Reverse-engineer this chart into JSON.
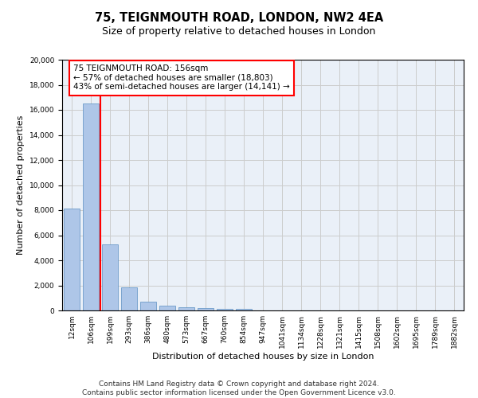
{
  "title_line1": "75, TEIGNMOUTH ROAD, LONDON, NW2 4EA",
  "title_line2": "Size of property relative to detached houses in London",
  "xlabel": "Distribution of detached houses by size in London",
  "ylabel": "Number of detached properties",
  "bar_labels": [
    "12sqm",
    "106sqm",
    "199sqm",
    "293sqm",
    "386sqm",
    "480sqm",
    "573sqm",
    "667sqm",
    "760sqm",
    "854sqm",
    "947sqm",
    "1041sqm",
    "1134sqm",
    "1228sqm",
    "1321sqm",
    "1415sqm",
    "1508sqm",
    "1602sqm",
    "1695sqm",
    "1789sqm",
    "1882sqm"
  ],
  "bar_values": [
    8100,
    16500,
    5300,
    1850,
    700,
    350,
    270,
    220,
    150,
    100,
    0,
    0,
    0,
    0,
    0,
    0,
    0,
    0,
    0,
    0,
    0
  ],
  "bar_color": "#aec6e8",
  "bar_edge_color": "#5a8fc2",
  "vline_x": 1.5,
  "vline_color": "red",
  "annotation_text": "75 TEIGNMOUTH ROAD: 156sqm\n← 57% of detached houses are smaller (18,803)\n43% of semi-detached houses are larger (14,141) →",
  "annotation_box_color": "white",
  "annotation_box_edge_color": "red",
  "ylim": [
    0,
    20000
  ],
  "yticks": [
    0,
    2000,
    4000,
    6000,
    8000,
    10000,
    12000,
    14000,
    16000,
    18000,
    20000
  ],
  "grid_color": "#cccccc",
  "bg_color": "#eaf0f8",
  "footer_line1": "Contains HM Land Registry data © Crown copyright and database right 2024.",
  "footer_line2": "Contains public sector information licensed under the Open Government Licence v3.0.",
  "title_fontsize": 10.5,
  "subtitle_fontsize": 9,
  "axis_label_fontsize": 8,
  "tick_fontsize": 6.5,
  "annotation_fontsize": 7.5,
  "footer_fontsize": 6.5
}
